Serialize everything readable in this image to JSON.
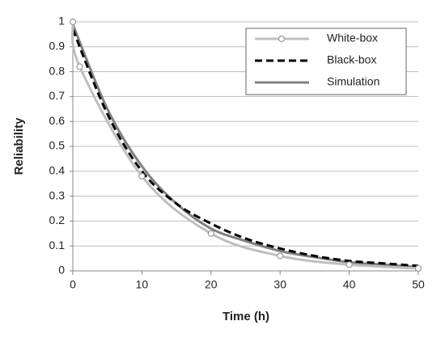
{
  "chart_data": {
    "type": "line",
    "x_label": "Time (h)",
    "y_label": "Reliability",
    "xlim": [
      0,
      50
    ],
    "xticks": [
      0,
      10,
      20,
      30,
      40,
      50
    ],
    "ylim": [
      0,
      1
    ],
    "yticks": [
      0,
      0.1,
      0.2,
      0.3,
      0.4,
      0.5,
      0.6,
      0.7,
      0.8,
      0.9,
      1
    ],
    "grid": true,
    "legend": "upper right",
    "series": [
      {
        "name": "White-box",
        "color": "#bfbfbf",
        "marker": "circle",
        "dashed": false,
        "x": [
          0,
          1,
          10,
          20,
          30,
          40,
          50
        ],
        "values": [
          1,
          0.82,
          0.38,
          0.15,
          0.06,
          0.025,
          0.01
        ]
      },
      {
        "name": "Black-box",
        "color": "#000000",
        "marker": "none",
        "dashed": true,
        "x": [
          0,
          5,
          10,
          15,
          20,
          25,
          30,
          35,
          40,
          45,
          50
        ],
        "values": [
          0.97,
          0.63,
          0.4,
          0.27,
          0.19,
          0.13,
          0.09,
          0.06,
          0.04,
          0.03,
          0.02
        ]
      },
      {
        "name": "Simulation",
        "color": "#808080",
        "marker": "none",
        "dashed": false,
        "x": [
          0,
          5,
          10,
          15,
          20,
          25,
          30,
          35,
          40,
          45,
          50
        ],
        "values": [
          0.99,
          0.65,
          0.42,
          0.27,
          0.17,
          0.12,
          0.08,
          0.055,
          0.035,
          0.025,
          0.015
        ]
      }
    ]
  }
}
